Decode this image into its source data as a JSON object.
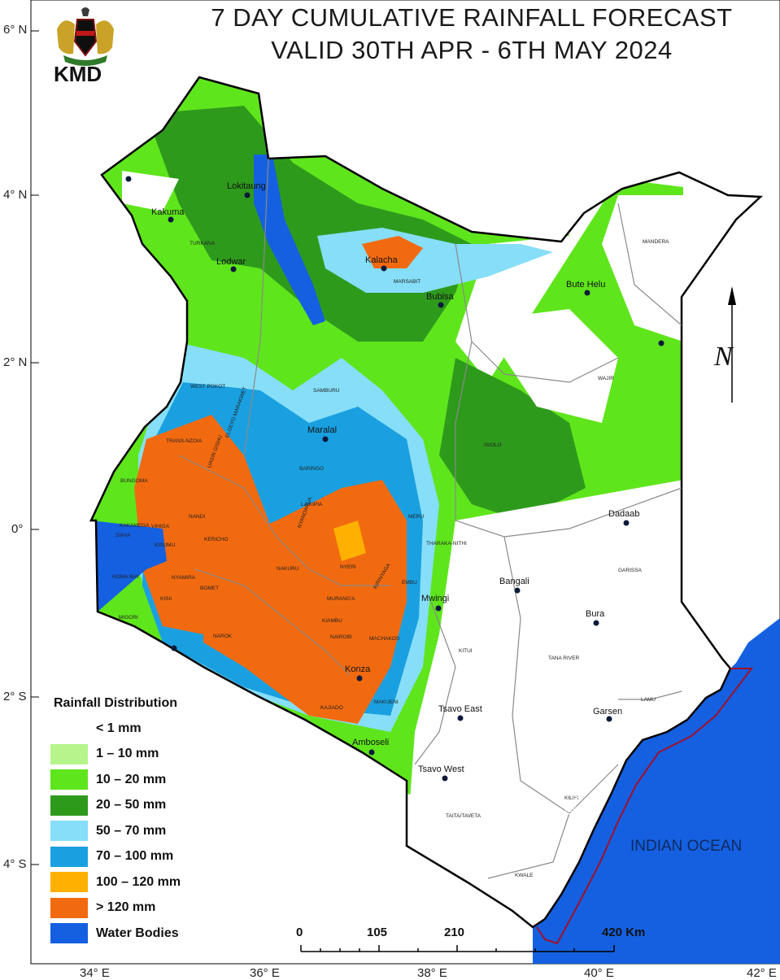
{
  "header": {
    "title_line1": "7 DAY CUMULATIVE RAINFALL FORECAST",
    "title_line2": "VALID 30TH APR - 6TH MAY  2024",
    "logo_text": "KMD"
  },
  "axes": {
    "latitude_labels": [
      "6° N",
      "4° N",
      "2° N",
      "0°",
      "2° S",
      "4° S"
    ],
    "longitude_labels": [
      "34° E",
      "36° E",
      "38° E",
      "40° E",
      "42° E"
    ]
  },
  "legend": {
    "title": "Rainfall Distribution",
    "items": [
      {
        "label": "< 1 mm",
        "color": "#ffffff"
      },
      {
        "label": "1 – 10 mm",
        "color": "#b6f58c"
      },
      {
        "label": "10 – 20 mm",
        "color": "#5fe51c"
      },
      {
        "label": "20 – 50 mm",
        "color": "#2e9a1c"
      },
      {
        "label": "50 – 70 mm",
        "color": "#86def8"
      },
      {
        "label": "70 – 100 mm",
        "color": "#1aa0e0"
      },
      {
        "label": "100 – 120 mm",
        "color": "#ffb000"
      },
      {
        "label": "> 120 mm",
        "color": "#f26a10"
      },
      {
        "label": "Water Bodies",
        "color": "#1460e0"
      }
    ]
  },
  "places": [
    {
      "name": "Lokitaung"
    },
    {
      "name": "Kakuma"
    },
    {
      "name": "Lodwar"
    },
    {
      "name": "Kalacha"
    },
    {
      "name": "Bubisa"
    },
    {
      "name": "Bute Helu"
    },
    {
      "name": "Maralal"
    },
    {
      "name": "Dadaab"
    },
    {
      "name": "Bangali"
    },
    {
      "name": "Mwingi"
    },
    {
      "name": "Bura"
    },
    {
      "name": "Konza"
    },
    {
      "name": "Tsavo East"
    },
    {
      "name": "Garsen"
    },
    {
      "name": "Amboseli"
    },
    {
      "name": "Tsavo West"
    }
  ],
  "counties": [
    "TURKANA",
    "MARSABIT",
    "MANDERA",
    "WAJIR",
    "WEST POKOT",
    "SAMBURU",
    "TRANS-NZOIA",
    "BARINGO",
    "ISIOLO",
    "BUNGOMA",
    "UASIN GISHU",
    "ELGEYO MARAKWET",
    "KAKAMEGA",
    "NANDI",
    "LAIKIPIA",
    "MERU",
    "SIAYA",
    "VIHIGA",
    "KISUMU",
    "KERICHO",
    "NYANDARUA",
    "THARAKA-NITHI",
    "HOMA BAY",
    "NYAMIRA",
    "NAKURU",
    "NYERI",
    "EMBU",
    "GARISSA",
    "KISII",
    "BOMET",
    "MURANG'A",
    "KIRINYAGA",
    "MIGORI",
    "KIAMBU",
    "NAROK",
    "NAIROBI",
    "MACHAKOS",
    "KITUI",
    "TANA RIVER",
    "MAKUENI",
    "KAJIADO",
    "LAMU",
    "TAITA/TAVETA",
    "KILIFI",
    "KWALE"
  ],
  "annotations": {
    "ocean": "INDIAN OCEAN",
    "boundary": "Territorial Boundary",
    "north": "N"
  },
  "scale_bar": {
    "labels": [
      "0",
      "105",
      "210",
      "420 Km"
    ]
  },
  "colors": {
    "ocean": "#1460e0",
    "boundary_line": "#a0102a",
    "county_lines": "#8a8a8a"
  }
}
